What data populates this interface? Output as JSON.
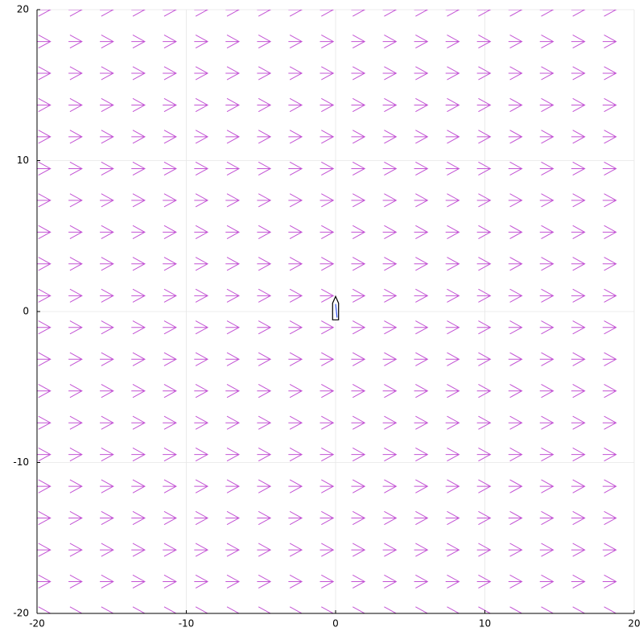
{
  "chart_data": {
    "type": "quiver",
    "x": [
      -20,
      -17.89,
      -15.79,
      -13.68,
      -11.58,
      -9.47,
      -7.37,
      -5.26,
      -3.16,
      -1.05,
      1.05,
      3.16,
      5.26,
      7.37,
      9.47,
      11.58,
      13.68,
      15.79,
      17.89,
      20
    ],
    "y": [
      -20,
      -17.89,
      -15.79,
      -13.68,
      -11.58,
      -9.47,
      -7.37,
      -5.26,
      -3.16,
      -1.05,
      1.05,
      3.16,
      5.26,
      7.37,
      9.47,
      11.58,
      13.68,
      15.79,
      17.89,
      20
    ],
    "u": 0.9,
    "v": 0,
    "color": "#c354d4",
    "boat": {
      "x": [
        -0.2,
        0.2,
        0.2,
        0,
        -0.2,
        -0.2
      ],
      "y": [
        -0.55,
        -0.55,
        0.55,
        1,
        0.55,
        -0.55
      ],
      "color": "#000000"
    },
    "heading": {
      "x": [
        0.1,
        0
      ],
      "y": [
        -0.4,
        0.5
      ],
      "color": "#3355ee"
    },
    "xlim": [
      -20,
      20
    ],
    "ylim": [
      -20,
      20
    ],
    "xticks": [
      -20,
      -10,
      0,
      10,
      20
    ],
    "yticks": [
      -20,
      -10,
      0,
      10,
      20
    ],
    "grid": true
  }
}
